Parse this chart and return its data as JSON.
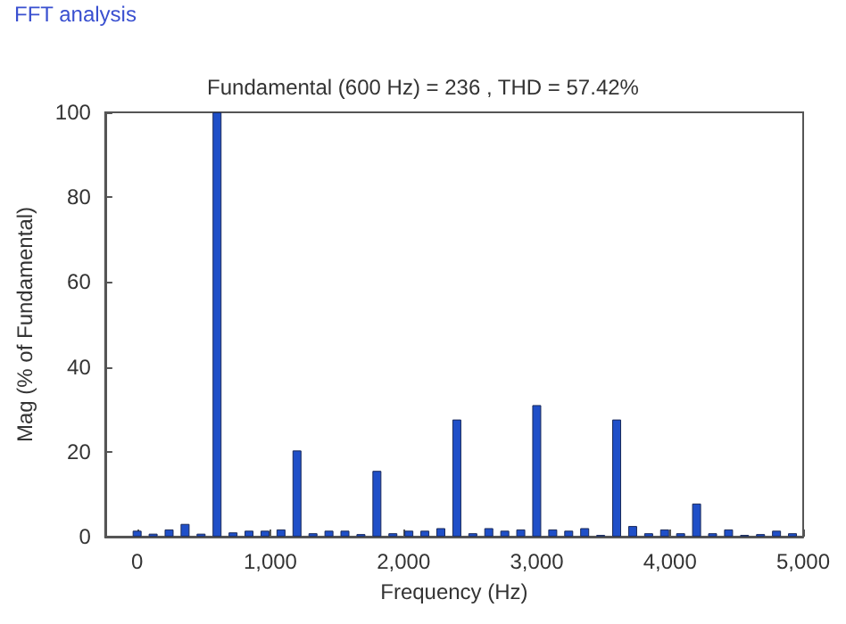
{
  "chart_data": {
    "type": "bar",
    "title": "Fundamental (600 Hz) = 236 , THD = 57.42%",
    "xlabel": "Frequency (Hz)",
    "ylabel": "Mag (% of Fundamental)",
    "annotations": [
      "FFT analysis"
    ],
    "x": [
      0,
      120,
      240,
      360,
      480,
      600,
      720,
      840,
      960,
      1080,
      1200,
      1320,
      1440,
      1560,
      1680,
      1800,
      1920,
      2040,
      2160,
      2280,
      2400,
      2520,
      2640,
      2760,
      2880,
      3000,
      3120,
      3240,
      3360,
      3480,
      3600,
      3720,
      3840,
      3960,
      4080,
      4200,
      4320,
      4440,
      4560,
      4680,
      4800,
      4920
    ],
    "values": [
      1.4,
      0.7,
      1.7,
      3,
      0.7,
      100,
      1,
      1.4,
      1.4,
      1.7,
      20.3,
      0.8,
      1.4,
      1.4,
      0.6,
      15.5,
      0.8,
      1.4,
      1.4,
      2,
      27.6,
      0.8,
      2,
      1.4,
      1.7,
      31,
      1.7,
      1.4,
      2,
      0.4,
      27.6,
      2.5,
      0.8,
      1.7,
      0.8,
      7.8,
      0.8,
      1.7,
      0.4,
      0.6,
      1.4,
      0.8
    ],
    "color": "#1f4fc8",
    "xlim": [
      -240,
      5000
    ],
    "xticks": [
      0,
      {
        "value": 1000,
        "label": "1,000"
      },
      {
        "value": 2000,
        "label": "2,000"
      },
      {
        "value": 3000,
        "label": "3,000"
      },
      {
        "value": 4000,
        "label": "4,000"
      },
      {
        "value": 5000,
        "label": "5,000"
      }
    ],
    "ylim": [
      0,
      100
    ],
    "yticks": [
      0,
      20,
      40,
      60,
      80,
      100
    ],
    "grid": false
  }
}
